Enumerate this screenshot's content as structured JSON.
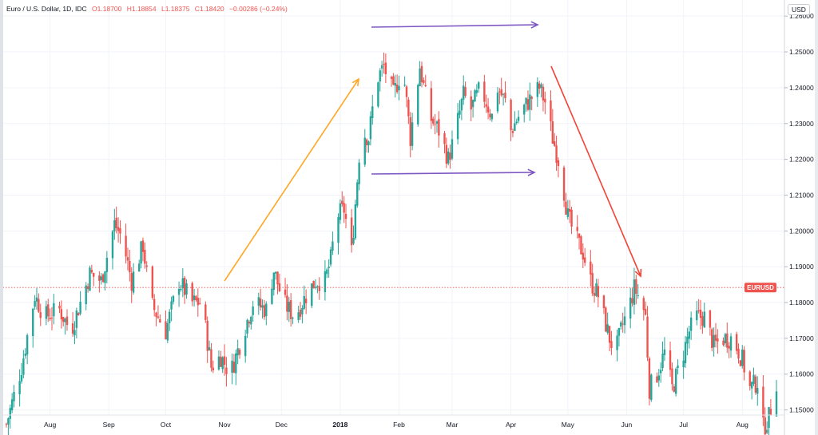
{
  "legend": {
    "title": "Euro / U.S. Dollar, 1D, IDC",
    "open": "O1.18700",
    "high": "H1.18854",
    "low": "L1.18375",
    "close": "C1.18420",
    "change": "−0.00286 (−0.24%)"
  },
  "currency": "USD",
  "price_tag": "EURUSD",
  "chart_data": {
    "type": "candlestick",
    "symbol": "EURUSD",
    "interval": "1D",
    "ylim": [
      1.143,
      1.2645
    ],
    "yticks": [
      "1.15000",
      "1.16000",
      "1.17000",
      "1.18000",
      "1.19000",
      "1.20000",
      "1.21000",
      "1.22000",
      "1.23000",
      "1.24000",
      "1.25000",
      "1.26000"
    ],
    "xticks": [
      {
        "label": "Aug",
        "day": 23
      },
      {
        "label": "Sep",
        "day": 54
      },
      {
        "label": "Oct",
        "day": 84
      },
      {
        "label": "Nov",
        "day": 115
      },
      {
        "label": "Dec",
        "day": 145
      },
      {
        "label": "2018",
        "day": 176,
        "bold": true
      },
      {
        "label": "Feb",
        "day": 207
      },
      {
        "label": "Mar",
        "day": 235
      },
      {
        "label": "Apr",
        "day": 266
      },
      {
        "label": "May",
        "day": 296
      },
      {
        "label": "Jun",
        "day": 327
      },
      {
        "label": "Jul",
        "day": 357
      },
      {
        "label": "Aug",
        "day": 388
      }
    ],
    "day_range": [
      0,
      406
    ],
    "last_price": 1.1842,
    "colors": {
      "up": "#26a69a",
      "down": "#ef5350"
    },
    "anchors": [
      [
        0,
        1.146
      ],
      [
        8,
        1.162
      ],
      [
        15,
        1.182
      ],
      [
        20,
        1.176
      ],
      [
        28,
        1.178
      ],
      [
        34,
        1.172
      ],
      [
        44,
        1.188
      ],
      [
        50,
        1.186
      ],
      [
        57,
        1.202
      ],
      [
        61,
        1.198
      ],
      [
        66,
        1.186
      ],
      [
        72,
        1.196
      ],
      [
        76,
        1.18
      ],
      [
        84,
        1.172
      ],
      [
        91,
        1.186
      ],
      [
        98,
        1.18
      ],
      [
        103,
        1.18
      ],
      [
        108,
        1.162
      ],
      [
        113,
        1.165
      ],
      [
        118,
        1.16
      ],
      [
        124,
        1.17
      ],
      [
        130,
        1.18
      ],
      [
        137,
        1.178
      ],
      [
        141,
        1.189
      ],
      [
        146,
        1.18
      ],
      [
        152,
        1.176
      ],
      [
        158,
        1.182
      ],
      [
        163,
        1.186
      ],
      [
        168,
        1.186
      ],
      [
        171,
        1.192
      ],
      [
        174,
        1.204
      ],
      [
        178,
        1.206
      ],
      [
        182,
        1.194
      ],
      [
        187,
        1.228
      ],
      [
        191,
        1.226
      ],
      [
        195,
        1.242
      ],
      [
        199,
        1.246
      ],
      [
        204,
        1.238
      ],
      [
        209,
        1.246
      ],
      [
        213,
        1.226
      ],
      [
        218,
        1.246
      ],
      [
        223,
        1.232
      ],
      [
        228,
        1.228
      ],
      [
        233,
        1.22
      ],
      [
        236,
        1.226
      ],
      [
        241,
        1.238
      ],
      [
        245,
        1.234
      ],
      [
        250,
        1.24
      ],
      [
        256,
        1.232
      ],
      [
        259,
        1.24
      ],
      [
        263,
        1.236
      ],
      [
        266,
        1.228
      ],
      [
        270,
        1.232
      ],
      [
        275,
        1.236
      ],
      [
        281,
        1.24
      ],
      [
        284,
        1.236
      ],
      [
        288,
        1.226
      ],
      [
        292,
        1.218
      ],
      [
        296,
        1.204
      ],
      [
        300,
        1.198
      ],
      [
        304,
        1.194
      ],
      [
        308,
        1.186
      ],
      [
        312,
        1.182
      ],
      [
        318,
        1.17
      ],
      [
        321,
        1.166
      ],
      [
        325,
        1.174
      ],
      [
        328,
        1.178
      ],
      [
        331,
        1.184
      ],
      [
        335,
        1.18
      ],
      [
        337,
        1.176
      ],
      [
        339,
        1.156
      ],
      [
        343,
        1.16
      ],
      [
        347,
        1.166
      ],
      [
        351,
        1.156
      ],
      [
        356,
        1.164
      ],
      [
        360,
        1.172
      ],
      [
        364,
        1.176
      ],
      [
        368,
        1.176
      ],
      [
        373,
        1.168
      ],
      [
        378,
        1.17
      ],
      [
        383,
        1.17
      ],
      [
        388,
        1.164
      ],
      [
        392,
        1.156
      ],
      [
        396,
        1.158
      ],
      [
        399,
        1.145
      ],
      [
        402,
        1.148
      ],
      [
        406,
        1.158
      ]
    ]
  },
  "annotations": {
    "colors": {
      "orange": "#ffa726",
      "purple": "#7e57c2",
      "red": "#f44336"
    }
  }
}
